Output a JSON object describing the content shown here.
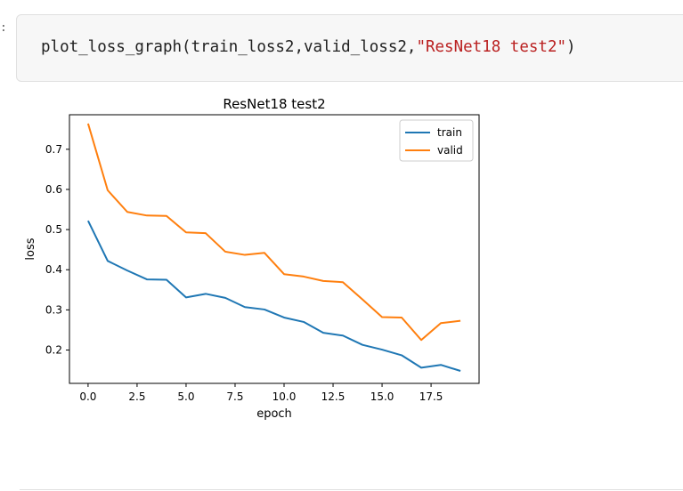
{
  "cell": {
    "prompt": ":",
    "code_fn": "plot_loss_graph(train_loss2,valid_loss2,",
    "code_str": "\"ResNet18 test2\"",
    "code_end": ")"
  },
  "colors": {
    "train": "#1f77b4",
    "valid": "#ff7f0e",
    "string": "#ba2121"
  },
  "chart_data": {
    "type": "line",
    "title": "ResNet18 test2",
    "xlabel": "epoch",
    "ylabel": "loss",
    "x": [
      0,
      1,
      2,
      3,
      4,
      5,
      6,
      7,
      8,
      9,
      10,
      11,
      12,
      13,
      14,
      15,
      16,
      17,
      18,
      19
    ],
    "xlim": [
      -0.95,
      19.95
    ],
    "ylim": [
      0.117,
      0.786
    ],
    "xticks": [
      0,
      2.5,
      5,
      7.5,
      10,
      12.5,
      15,
      17.5
    ],
    "xtick_labels": [
      "0.0",
      "2.5",
      "5.0",
      "7.5",
      "10.0",
      "12.5",
      "15.0",
      "17.5"
    ],
    "yticks": [
      0.2,
      0.3,
      0.4,
      0.5,
      0.6,
      0.7
    ],
    "ytick_labels": [
      "0.2",
      "0.3",
      "0.4",
      "0.5",
      "0.6",
      "0.7"
    ],
    "grid": false,
    "legend_position": "top-right",
    "series": [
      {
        "name": "train",
        "color": "#1f77b4",
        "values": [
          0.522,
          0.422,
          0.398,
          0.376,
          0.375,
          0.331,
          0.34,
          0.33,
          0.307,
          0.301,
          0.281,
          0.27,
          0.243,
          0.236,
          0.213,
          0.201,
          0.187,
          0.156,
          0.163,
          0.148
        ]
      },
      {
        "name": "valid",
        "color": "#ff7f0e",
        "values": [
          0.764,
          0.598,
          0.544,
          0.535,
          0.534,
          0.493,
          0.491,
          0.445,
          0.437,
          0.442,
          0.389,
          0.383,
          0.372,
          0.369,
          0.326,
          0.282,
          0.281,
          0.225,
          0.267,
          0.273
        ]
      }
    ]
  }
}
